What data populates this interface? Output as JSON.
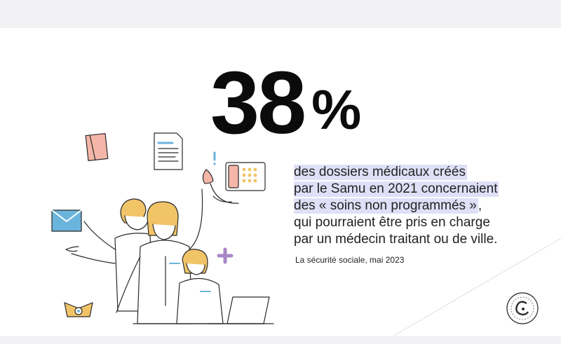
{
  "stat": {
    "number": "38",
    "unit": "%"
  },
  "description": {
    "lines": [
      {
        "text": "des dossiers médicaux créés",
        "highlight": true
      },
      {
        "text": "par le Samu en 2021 concernaient",
        "highlight": true
      },
      {
        "text": "des « soins non programmés »",
        "highlight": true,
        "suffix": ","
      },
      {
        "text": "qui pourraient être pris en charge",
        "highlight": false
      },
      {
        "text": "par un médecin traitant ou de ville.",
        "highlight": false
      }
    ]
  },
  "source": "La sécurité sociale, mai 2023",
  "illustration": {
    "icons": [
      "booklet-icon",
      "document-icon",
      "exclamation-icon",
      "telephone-icon",
      "calendar-icon",
      "envelope-icon",
      "plus-icon",
      "laptop-icon",
      "bell-icon",
      "hands-icon"
    ],
    "colors": {
      "highlight": "#dfe0f7",
      "hair": "#f2c468",
      "envelope": "#6ab4dc",
      "plus": "#a987c7",
      "pink": "#f4b6a8",
      "lavender": "#d5d3ee"
    }
  },
  "logo": {
    "icon": "securite-sociale-logo-icon"
  }
}
